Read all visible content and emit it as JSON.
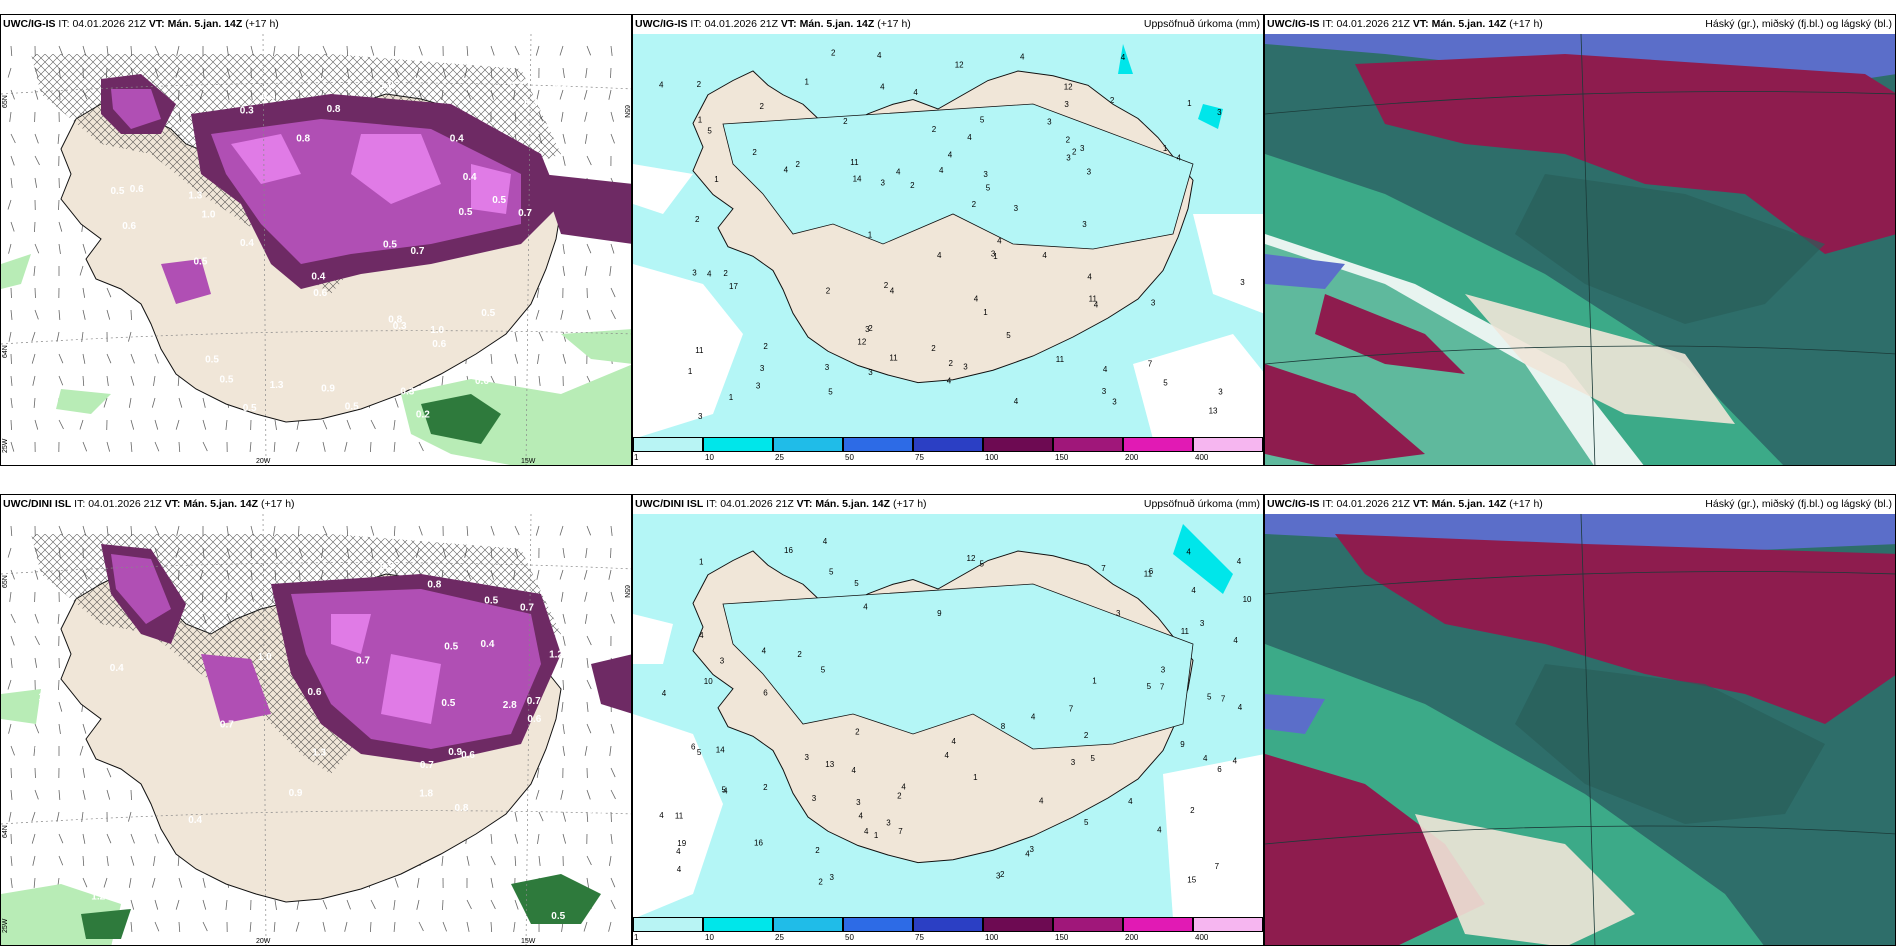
{
  "panels": [
    {
      "id": "tl",
      "model": "UWC/IG-IS",
      "it_label": "IT:",
      "it": "04.01.2026 21Z",
      "vt_label": "VT:",
      "vt": "Mán. 5.jan. 14Z",
      "lead": "(+17 h)",
      "right": "",
      "lat_labels": [
        {
          "t": "65N"
        },
        {
          "t": "64N"
        },
        {
          "t": "25W"
        },
        {
          "t": "65N"
        }
      ],
      "lon_labels": [
        "20W",
        "15W"
      ],
      "values": [
        "0.2",
        "0.3",
        "0.5",
        "1.3",
        "0.5",
        "0.3",
        "0.7",
        "0.4",
        "0.6",
        "0.5",
        "1.0",
        "0.5",
        "0.4",
        "0.8",
        "0.5",
        "0.3",
        "0.6",
        "0.4",
        "0.5",
        "0.7",
        "0.4",
        "0.3",
        "0.5",
        "0.6",
        "0.7",
        "0.4",
        "0.5",
        "1.0",
        "0.5",
        "0.8",
        "0.6",
        "0.5",
        "0.4",
        "1.3",
        "0.9",
        "0.9",
        "1.0",
        "0.6",
        "0.8",
        "1.0",
        "0.8",
        "0.5"
      ]
    },
    {
      "id": "tc",
      "model": "UWC/IG-IS",
      "it_label": "IT:",
      "it": "04.01.2026 21Z",
      "vt_label": "VT:",
      "vt": "Mán. 5.jan. 14Z",
      "lead": "(+17 h)",
      "right": "Uppsöfnuð úrkoma (mm)",
      "values": [
        "1",
        "3",
        "4",
        "4",
        "4",
        "4",
        "7",
        "12",
        "4",
        "12",
        "13",
        "14",
        "11",
        "12",
        "11",
        "11",
        "11",
        "17",
        "4",
        "3",
        "4",
        "3",
        "4",
        "4",
        "4",
        "3",
        "4",
        "4",
        "4",
        "5",
        "5",
        "4",
        "5",
        "3",
        "3",
        "4",
        "2",
        "3",
        "1",
        "2",
        "4",
        "2",
        "2",
        "3",
        "3",
        "3",
        "4",
        "3",
        "3",
        "3",
        "5",
        "4",
        "2",
        "3",
        "2",
        "2",
        "1",
        "2",
        "3",
        "4",
        "5",
        "2",
        "2",
        "1",
        "3",
        "2",
        "4",
        "3",
        "5",
        "3",
        "2",
        "1",
        "2",
        "2",
        "3",
        "3",
        "3",
        "2",
        "2",
        "3",
        "3",
        "4",
        "3",
        "4",
        "1",
        "2",
        "2",
        "2",
        "1",
        "1",
        "1",
        "11",
        "4",
        "1",
        "2"
      ]
    },
    {
      "id": "tr",
      "model": "UWC/IG-IS",
      "it_label": "IT:",
      "it": "04.01.2026 21Z",
      "vt_label": "VT:",
      "vt": "Mán. 5.jan. 14Z",
      "lead": "(+17 h)",
      "right": "Háský (gr.), miðský (fj.bl.) og lágský (bl.)"
    },
    {
      "id": "bl",
      "model": "UWC/DINI ISL",
      "it_label": "IT:",
      "it": "04.01.2026 21Z",
      "vt_label": "VT:",
      "vt": "Mán. 5.jan. 14Z",
      "lead": "(+17 h)",
      "right": "",
      "lat_labels": [
        {
          "t": "65N"
        },
        {
          "t": "64N"
        },
        {
          "t": "25W"
        },
        {
          "t": "65N"
        }
      ],
      "lon_labels": [
        "20W",
        "15W"
      ],
      "values": [
        "1.8",
        "3.7",
        "2.8",
        "3.2",
        "0.5",
        "0.4",
        "0.7",
        "0.6",
        "0.5",
        "0.3",
        "0.9",
        "0.7",
        "0.6",
        "0.8",
        "0.4",
        "0.5",
        "0.7",
        "0.6",
        "0.5",
        "1.0",
        "0.9",
        "0.7",
        "0.5",
        "0.8",
        "0.6",
        "0.5",
        "0.4",
        "0.5",
        "0.6",
        "0.8",
        "1.2",
        "0.5",
        "1.1",
        "2.1",
        "0.7",
        "1.2",
        "0.7",
        "1.3",
        "0.6",
        "0.8"
      ]
    },
    {
      "id": "bc",
      "model": "UWC/DINI ISL",
      "it_label": "IT:",
      "it": "04.01.2026 21Z",
      "vt_label": "VT:",
      "vt": "Mán. 5.jan. 14Z",
      "lead": "(+17 h)",
      "right": "Uppsöfnuð úrkoma (mm)",
      "values": [
        "2",
        "4",
        "4",
        "4",
        "4",
        "7",
        "15",
        "13",
        "16",
        "16",
        "12",
        "11",
        "4",
        "4",
        "9",
        "4",
        "4",
        "5",
        "5",
        "3",
        "4",
        "6",
        "7",
        "5",
        "10",
        "8",
        "11",
        "3",
        "14",
        "7",
        "6",
        "5",
        "4",
        "4",
        "3",
        "4",
        "4",
        "3",
        "2",
        "4",
        "3",
        "6",
        "7",
        "5",
        "5",
        "5",
        "4",
        "4",
        "5",
        "4",
        "3",
        "4",
        "2",
        "4",
        "7",
        "3",
        "3",
        "4",
        "4",
        "3",
        "2",
        "4",
        "5",
        "4",
        "3",
        "4",
        "2",
        "1",
        "2",
        "2",
        "1",
        "1",
        "5",
        "10",
        "7",
        "4",
        "4",
        "1",
        "2",
        "9",
        "6",
        "19",
        "11",
        "3",
        "4",
        "3",
        "2"
      ]
    },
    {
      "id": "br",
      "model": "UWC/IG-IS",
      "it_label": "IT:",
      "it": "04.01.2026 21Z",
      "vt_label": "VT:",
      "vt": "Mán. 5.jan. 14Z",
      "lead": "(+17 h)",
      "right": "Háský (gr.), miðský (fj.bl.) og lágský (bl.)"
    }
  ],
  "colorbar": {
    "ticks": [
      "1",
      "10",
      "25",
      "50",
      "75",
      "100",
      "150",
      "200",
      "400"
    ],
    "colors": [
      "#b8f4f4",
      "#00e6ea",
      "#20bce8",
      "#2d6be6",
      "#2b3fc4",
      "#6d0a52",
      "#a0177a",
      "#e11ab4",
      "#f6b6f0"
    ]
  },
  "colors": {
    "land": "#f0e6d8",
    "precip_light": "#b4f6f6",
    "purple_dark": "#6e2a64",
    "purple": "#b04fb4",
    "magenta": "#e07be6",
    "green": "#b8ecb6",
    "darkgreen": "#2e7a3c",
    "teal": "#2e6e6a",
    "crimson": "#8e1c4e",
    "seagreen": "#3caa88"
  }
}
